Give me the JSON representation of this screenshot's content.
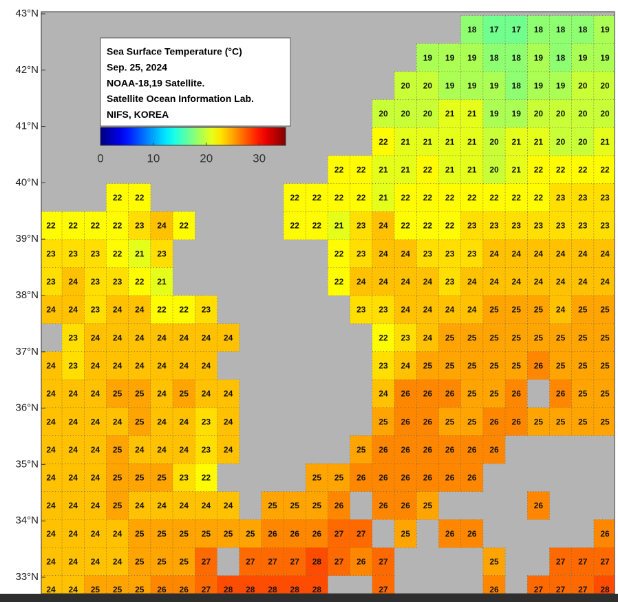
{
  "legend": {
    "lines": [
      "Sea Surface Temperature (°C)",
      "Sep. 25, 2024",
      "NOAA-18,19 Satellite.",
      "Satellite Ocean Information Lab.",
      "NIFS, KOREA"
    ],
    "range": [
      0,
      35
    ],
    "ticks": [
      0,
      10,
      20,
      30
    ]
  },
  "lat_range": [
    43,
    33
  ],
  "lat_ticks": [
    {
      "value": 43,
      "label": "43°N"
    },
    {
      "value": 42,
      "label": "42°N"
    },
    {
      "value": 41,
      "label": "41°N"
    },
    {
      "value": 40,
      "label": "40°N"
    },
    {
      "value": 39,
      "label": "39°N"
    },
    {
      "value": 38,
      "label": "38°N"
    },
    {
      "value": 37,
      "label": "37°N"
    },
    {
      "value": 36,
      "label": "36°N"
    },
    {
      "value": 35,
      "label": "35°N"
    },
    {
      "value": 34,
      "label": "34°N"
    },
    {
      "value": 33,
      "label": "33°N"
    }
  ],
  "grid": {
    "values": [
      [
        null,
        null,
        null,
        null,
        null,
        null,
        null,
        null,
        null,
        null,
        null,
        null,
        null,
        null,
        null,
        null,
        null,
        null,
        null,
        18,
        17,
        17,
        18,
        18,
        18,
        19
      ],
      [
        null,
        null,
        null,
        null,
        null,
        null,
        null,
        null,
        null,
        null,
        null,
        null,
        null,
        null,
        null,
        null,
        null,
        19,
        19,
        19,
        18,
        18,
        19,
        18,
        19,
        19
      ],
      [
        null,
        null,
        null,
        null,
        null,
        null,
        null,
        null,
        null,
        null,
        null,
        null,
        null,
        null,
        null,
        null,
        20,
        20,
        19,
        19,
        19,
        18,
        19,
        19,
        20,
        20
      ],
      [
        null,
        null,
        null,
        null,
        null,
        null,
        null,
        null,
        null,
        null,
        null,
        null,
        null,
        null,
        null,
        20,
        20,
        20,
        21,
        21,
        19,
        19,
        20,
        20,
        20,
        20
      ],
      [
        null,
        null,
        null,
        null,
        null,
        null,
        null,
        null,
        null,
        null,
        null,
        null,
        null,
        null,
        null,
        22,
        21,
        21,
        21,
        21,
        20,
        21,
        21,
        20,
        20,
        21
      ],
      [
        null,
        null,
        null,
        null,
        null,
        null,
        null,
        null,
        null,
        null,
        null,
        null,
        null,
        22,
        22,
        21,
        21,
        22,
        21,
        21,
        20,
        21,
        22,
        22,
        22,
        22
      ],
      [
        null,
        null,
        null,
        22,
        22,
        null,
        null,
        null,
        null,
        null,
        null,
        22,
        22,
        22,
        22,
        21,
        22,
        22,
        22,
        22,
        22,
        22,
        22,
        23,
        23,
        23
      ],
      [
        22,
        22,
        22,
        22,
        23,
        24,
        22,
        null,
        null,
        null,
        null,
        22,
        22,
        21,
        23,
        24,
        22,
        22,
        22,
        23,
        23,
        23,
        23,
        23,
        23,
        23
      ],
      [
        23,
        23,
        23,
        22,
        21,
        23,
        null,
        null,
        null,
        null,
        null,
        null,
        null,
        22,
        23,
        24,
        24,
        23,
        23,
        23,
        24,
        24,
        24,
        24,
        24,
        24
      ],
      [
        23,
        24,
        23,
        23,
        22,
        21,
        null,
        null,
        null,
        null,
        null,
        null,
        null,
        22,
        24,
        24,
        24,
        24,
        23,
        24,
        24,
        24,
        24,
        24,
        24,
        24
      ],
      [
        24,
        24,
        23,
        24,
        24,
        22,
        22,
        23,
        null,
        null,
        null,
        null,
        null,
        null,
        23,
        23,
        24,
        24,
        24,
        24,
        25,
        25,
        25,
        24,
        25,
        25
      ],
      [
        null,
        23,
        24,
        24,
        24,
        24,
        24,
        24,
        24,
        null,
        null,
        null,
        null,
        null,
        null,
        22,
        23,
        24,
        25,
        25,
        25,
        25,
        25,
        25,
        25,
        25
      ],
      [
        24,
        23,
        24,
        24,
        24,
        24,
        24,
        24,
        null,
        null,
        null,
        null,
        null,
        null,
        null,
        23,
        24,
        25,
        25,
        25,
        25,
        25,
        26,
        25,
        25,
        25
      ],
      [
        24,
        24,
        24,
        25,
        25,
        24,
        25,
        24,
        24,
        null,
        null,
        null,
        null,
        null,
        null,
        24,
        26,
        26,
        26,
        25,
        25,
        26,
        null,
        26,
        25,
        25
      ],
      [
        24,
        24,
        24,
        24,
        25,
        24,
        24,
        23,
        24,
        null,
        null,
        null,
        null,
        null,
        null,
        25,
        26,
        26,
        25,
        25,
        26,
        26,
        25,
        25,
        25,
        25
      ],
      [
        24,
        24,
        24,
        25,
        24,
        24,
        24,
        23,
        24,
        null,
        null,
        null,
        null,
        null,
        25,
        26,
        26,
        26,
        26,
        26,
        26,
        null,
        null,
        null,
        null,
        null
      ],
      [
        24,
        24,
        24,
        25,
        25,
        25,
        23,
        22,
        null,
        null,
        null,
        null,
        25,
        25,
        26,
        26,
        26,
        26,
        26,
        26,
        null,
        null,
        null,
        null,
        null,
        null
      ],
      [
        24,
        24,
        24,
        25,
        24,
        24,
        24,
        24,
        24,
        null,
        25,
        25,
        25,
        26,
        null,
        26,
        26,
        25,
        null,
        null,
        null,
        null,
        26,
        null,
        null,
        null
      ],
      [
        24,
        24,
        24,
        24,
        25,
        25,
        25,
        25,
        25,
        25,
        26,
        26,
        26,
        27,
        27,
        null,
        25,
        null,
        26,
        26,
        null,
        null,
        null,
        null,
        null,
        26
      ],
      [
        24,
        24,
        24,
        24,
        25,
        25,
        25,
        27,
        null,
        27,
        27,
        27,
        28,
        27,
        26,
        27,
        null,
        null,
        null,
        null,
        25,
        null,
        null,
        27,
        27,
        27
      ],
      [
        24,
        24,
        25,
        25,
        25,
        26,
        26,
        27,
        28,
        28,
        28,
        28,
        28,
        null,
        null,
        27,
        null,
        null,
        null,
        null,
        26,
        null,
        27,
        27,
        27,
        28
      ]
    ]
  }
}
